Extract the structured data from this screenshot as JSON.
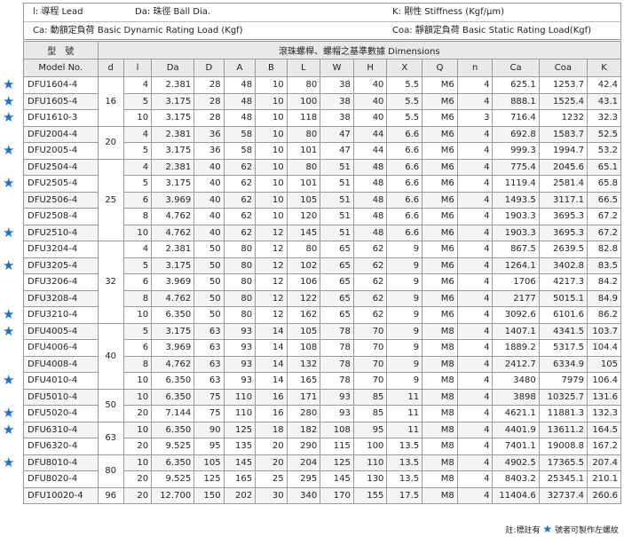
{
  "legend": {
    "lead": "l: 導程 Lead",
    "ball": "Da: 珠徑 Ball Dia.",
    "stiffness": "K: 剛性 Stiffness (Kgf/μm)",
    "dynamic": "Ca: 動額定負荷 Basic Dynamic Rating Load (Kgf)",
    "static": "Coa: 靜額定負荷 Basic Static Rating Load(Kgf)"
  },
  "header": {
    "type_label": "型　號",
    "model_label": "Model No.",
    "dims_label": "滾珠螺桿、螺帽之基準數據 Dimensions",
    "cols": [
      "d",
      "l",
      "Da",
      "D",
      "A",
      "B",
      "L",
      "W",
      "H",
      "X",
      "Q",
      "n",
      "Ca",
      "Coa",
      "K"
    ]
  },
  "star_color": "#1f6fc5",
  "groups": [
    {
      "d": "16",
      "rows": [
        {
          "star": true,
          "model": "DFU1604-4",
          "l": "4",
          "Da": "2.381",
          "D": "28",
          "A": "48",
          "B": "10",
          "L": "80",
          "W": "38",
          "H": "40",
          "X": "5.5",
          "Q": "M6",
          "n": "4",
          "Ca": "625.1",
          "Coa": "1253.7",
          "K": "42.4"
        },
        {
          "star": true,
          "model": "DFU1605-4",
          "l": "5",
          "Da": "3.175",
          "D": "28",
          "A": "48",
          "B": "10",
          "L": "100",
          "W": "38",
          "H": "40",
          "X": "5.5",
          "Q": "M6",
          "n": "4",
          "Ca": "888.1",
          "Coa": "1525.4",
          "K": "43.1"
        },
        {
          "star": true,
          "model": "DFU1610-3",
          "l": "10",
          "Da": "3.175",
          "D": "28",
          "A": "48",
          "B": "10",
          "L": "118",
          "W": "38",
          "H": "40",
          "X": "5.5",
          "Q": "M6",
          "n": "3",
          "Ca": "716.4",
          "Coa": "1232",
          "K": "32.3"
        }
      ]
    },
    {
      "d": "20",
      "rows": [
        {
          "star": false,
          "model": "DFU2004-4",
          "l": "4",
          "Da": "2.381",
          "D": "36",
          "A": "58",
          "B": "10",
          "L": "80",
          "W": "47",
          "H": "44",
          "X": "6.6",
          "Q": "M6",
          "n": "4",
          "Ca": "692.8",
          "Coa": "1583.7",
          "K": "52.5"
        },
        {
          "star": true,
          "model": "DFU2005-4",
          "l": "5",
          "Da": "3.175",
          "D": "36",
          "A": "58",
          "B": "10",
          "L": "101",
          "W": "47",
          "H": "44",
          "X": "6.6",
          "Q": "M6",
          "n": "4",
          "Ca": "999.3",
          "Coa": "1994.7",
          "K": "53.2"
        }
      ]
    },
    {
      "d": "25",
      "rows": [
        {
          "star": false,
          "model": "DFU2504-4",
          "l": "4",
          "Da": "2.381",
          "D": "40",
          "A": "62",
          "B": "10",
          "L": "80",
          "W": "51",
          "H": "48",
          "X": "6.6",
          "Q": "M6",
          "n": "4",
          "Ca": "775.4",
          "Coa": "2045.6",
          "K": "65.1"
        },
        {
          "star": true,
          "model": "DFU2505-4",
          "l": "5",
          "Da": "3.175",
          "D": "40",
          "A": "62",
          "B": "10",
          "L": "101",
          "W": "51",
          "H": "48",
          "X": "6.6",
          "Q": "M6",
          "n": "4",
          "Ca": "1119.4",
          "Coa": "2581.4",
          "K": "65.8"
        },
        {
          "star": false,
          "model": "DFU2506-4",
          "l": "6",
          "Da": "3.969",
          "D": "40",
          "A": "62",
          "B": "10",
          "L": "105",
          "W": "51",
          "H": "48",
          "X": "6.6",
          "Q": "M6",
          "n": "4",
          "Ca": "1493.5",
          "Coa": "3117.1",
          "K": "66.5"
        },
        {
          "star": false,
          "model": "DFU2508-4",
          "l": "8",
          "Da": "4.762",
          "D": "40",
          "A": "62",
          "B": "10",
          "L": "120",
          "W": "51",
          "H": "48",
          "X": "6.6",
          "Q": "M6",
          "n": "4",
          "Ca": "1903.3",
          "Coa": "3695.3",
          "K": "67.2"
        },
        {
          "star": true,
          "model": "DFU2510-4",
          "l": "10",
          "Da": "4.762",
          "D": "40",
          "A": "62",
          "B": "12",
          "L": "145",
          "W": "51",
          "H": "48",
          "X": "6.6",
          "Q": "M6",
          "n": "4",
          "Ca": "1903.3",
          "Coa": "3695.3",
          "K": "67.2"
        }
      ]
    },
    {
      "d": "32",
      "rows": [
        {
          "star": false,
          "model": "DFU3204-4",
          "l": "4",
          "Da": "2.381",
          "D": "50",
          "A": "80",
          "B": "12",
          "L": "80",
          "W": "65",
          "H": "62",
          "X": "9",
          "Q": "M6",
          "n": "4",
          "Ca": "867.5",
          "Coa": "2639.5",
          "K": "82.8"
        },
        {
          "star": true,
          "model": "DFU3205-4",
          "l": "5",
          "Da": "3.175",
          "D": "50",
          "A": "80",
          "B": "12",
          "L": "102",
          "W": "65",
          "H": "62",
          "X": "9",
          "Q": "M6",
          "n": "4",
          "Ca": "1264.1",
          "Coa": "3402.8",
          "K": "83.5"
        },
        {
          "star": false,
          "model": "DFU3206-4",
          "l": "6",
          "Da": "3.969",
          "D": "50",
          "A": "80",
          "B": "12",
          "L": "106",
          "W": "65",
          "H": "62",
          "X": "9",
          "Q": "M6",
          "n": "4",
          "Ca": "1706",
          "Coa": "4217.3",
          "K": "84.2"
        },
        {
          "star": false,
          "model": "DFU3208-4",
          "l": "8",
          "Da": "4.762",
          "D": "50",
          "A": "80",
          "B": "12",
          "L": "122",
          "W": "65",
          "H": "62",
          "X": "9",
          "Q": "M6",
          "n": "4",
          "Ca": "2177",
          "Coa": "5015.1",
          "K": "84.9"
        },
        {
          "star": true,
          "model": "DFU3210-4",
          "l": "10",
          "Da": "6.350",
          "D": "50",
          "A": "80",
          "B": "12",
          "L": "162",
          "W": "65",
          "H": "62",
          "X": "9",
          "Q": "M6",
          "n": "4",
          "Ca": "3092.6",
          "Coa": "6101.6",
          "K": "86.2"
        }
      ]
    },
    {
      "d": "40",
      "rows": [
        {
          "star": true,
          "model": "DFU4005-4",
          "l": "5",
          "Da": "3.175",
          "D": "63",
          "A": "93",
          "B": "14",
          "L": "105",
          "W": "78",
          "H": "70",
          "X": "9",
          "Q": "M8",
          "n": "4",
          "Ca": "1407.1",
          "Coa": "4341.5",
          "K": "103.7"
        },
        {
          "star": false,
          "model": "DFU4006-4",
          "l": "6",
          "Da": "3.969",
          "D": "63",
          "A": "93",
          "B": "14",
          "L": "108",
          "W": "78",
          "H": "70",
          "X": "9",
          "Q": "M8",
          "n": "4",
          "Ca": "1889.2",
          "Coa": "5317.5",
          "K": "104.4"
        },
        {
          "star": false,
          "model": "DFU4008-4",
          "l": "8",
          "Da": "4.762",
          "D": "63",
          "A": "93",
          "B": "14",
          "L": "132",
          "W": "78",
          "H": "70",
          "X": "9",
          "Q": "M8",
          "n": "4",
          "Ca": "2412.7",
          "Coa": "6334.9",
          "K": "105"
        },
        {
          "star": true,
          "model": "DFU4010-4",
          "l": "10",
          "Da": "6.350",
          "D": "63",
          "A": "93",
          "B": "14",
          "L": "165",
          "W": "78",
          "H": "70",
          "X": "9",
          "Q": "M8",
          "n": "4",
          "Ca": "3480",
          "Coa": "7979",
          "K": "106.4"
        }
      ]
    },
    {
      "d": "50",
      "rows": [
        {
          "star": false,
          "model": "DFU5010-4",
          "l": "10",
          "Da": "6.350",
          "D": "75",
          "A": "110",
          "B": "16",
          "L": "171",
          "W": "93",
          "H": "85",
          "X": "11",
          "Q": "M8",
          "n": "4",
          "Ca": "3898",
          "Coa": "10325.7",
          "K": "131.6"
        },
        {
          "star": true,
          "model": "DFU5020-4",
          "l": "20",
          "Da": "7.144",
          "D": "75",
          "A": "110",
          "B": "16",
          "L": "280",
          "W": "93",
          "H": "85",
          "X": "11",
          "Q": "M8",
          "n": "4",
          "Ca": "4621.1",
          "Coa": "11881.3",
          "K": "132.3"
        }
      ]
    },
    {
      "d": "63",
      "rows": [
        {
          "star": true,
          "model": "DFU6310-4",
          "l": "10",
          "Da": "6.350",
          "D": "90",
          "A": "125",
          "B": "18",
          "L": "182",
          "W": "108",
          "H": "95",
          "X": "11",
          "Q": "M8",
          "n": "4",
          "Ca": "4401.9",
          "Coa": "13611.2",
          "K": "164.5"
        },
        {
          "star": false,
          "model": "DFU6320-4",
          "l": "20",
          "Da": "9.525",
          "D": "95",
          "A": "135",
          "B": "20",
          "L": "290",
          "W": "115",
          "H": "100",
          "X": "13.5",
          "Q": "M8",
          "n": "4",
          "Ca": "7401.1",
          "Coa": "19008.8",
          "K": "167.2"
        }
      ]
    },
    {
      "d": "80",
      "rows": [
        {
          "star": true,
          "model": "DFU8010-4",
          "l": "10",
          "Da": "6.350",
          "D": "105",
          "A": "145",
          "B": "20",
          "L": "204",
          "W": "125",
          "H": "110",
          "X": "13.5",
          "Q": "M8",
          "n": "4",
          "Ca": "4902.5",
          "Coa": "17365.5",
          "K": "207.4"
        },
        {
          "star": false,
          "model": "DFU8020-4",
          "l": "20",
          "Da": "9.525",
          "D": "125",
          "A": "165",
          "B": "25",
          "L": "295",
          "W": "145",
          "H": "130",
          "X": "13.5",
          "Q": "M8",
          "n": "4",
          "Ca": "8403.2",
          "Coa": "25345.1",
          "K": "210.1"
        }
      ]
    },
    {
      "d": "96",
      "rows": [
        {
          "star": false,
          "model": "DFU10020-4",
          "l": "20",
          "Da": "12.700",
          "D": "150",
          "A": "202",
          "B": "30",
          "L": "340",
          "W": "170",
          "H": "155",
          "X": "17.5",
          "Q": "M8",
          "n": "4",
          "Ca": "11404.6",
          "Coa": "32737.4",
          "K": "260.6"
        }
      ]
    }
  ],
  "footnote": {
    "before": "註:標註有",
    "after": "號者可製作左螺紋"
  }
}
